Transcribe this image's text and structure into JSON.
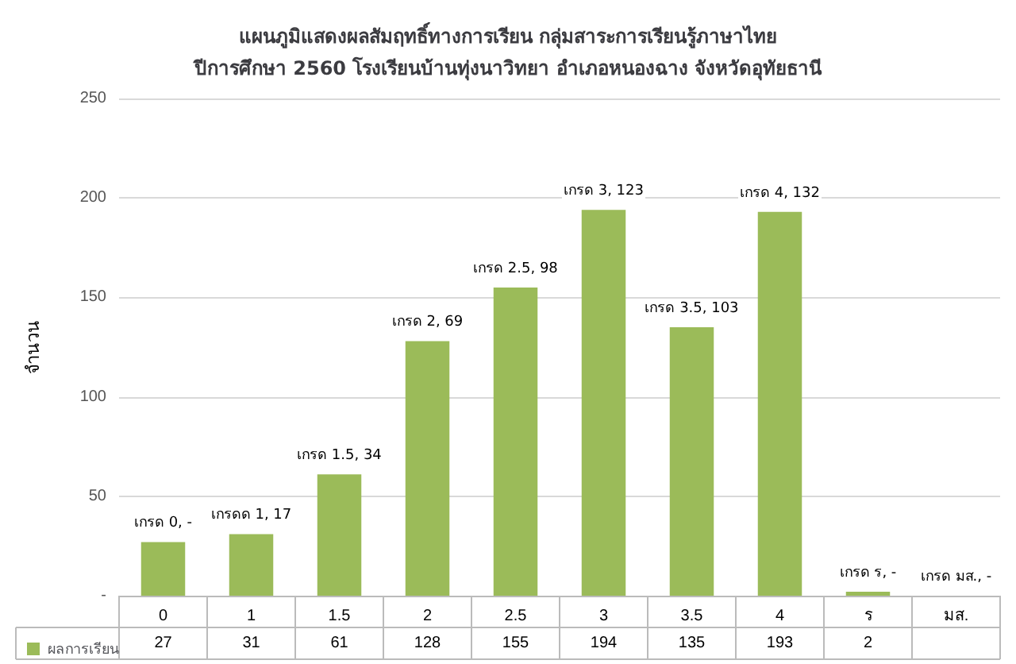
{
  "chart_data": {
    "type": "bar",
    "title": "แผนภูมิแสดงผลสัมฤทธิ์ทางการเรียน กลุ่มสาระการเรียนรู้ภาษาไทย\nปีการศึกษา 2560 โรงเรียนบ้านทุ่งนาวิทยา อำเภอหนองฉาง จังหวัดอุทัยธานี",
    "ylabel": "จำนวน",
    "categories": [
      "0",
      "1",
      "1.5",
      "2",
      "2.5",
      "3",
      "3.5",
      "4",
      "ร",
      "มส."
    ],
    "series": [
      {
        "name": "ผลการเรียน",
        "color": "#9bbb59",
        "values": [
          27,
          31,
          61,
          128,
          155,
          194,
          135,
          193,
          2,
          null
        ]
      }
    ],
    "annotations": [
      "เกรด 0, -",
      "เกรดด 1, 17",
      "เกรด 1.5, 34",
      "เกรด 2, 69",
      "เกรด 2.5, 98",
      "เกรด 3, 123",
      "เกรด 3.5, 103",
      "เกรด 4, 132",
      "เกรด ร, -",
      "เกรด มส., -"
    ],
    "ylim": [
      0,
      250
    ],
    "yticks": [
      {
        "value": 0,
        "label": "-"
      },
      50,
      100,
      150,
      200,
      250
    ],
    "grid": "y",
    "legend": "bottom",
    "data_labels": true
  }
}
